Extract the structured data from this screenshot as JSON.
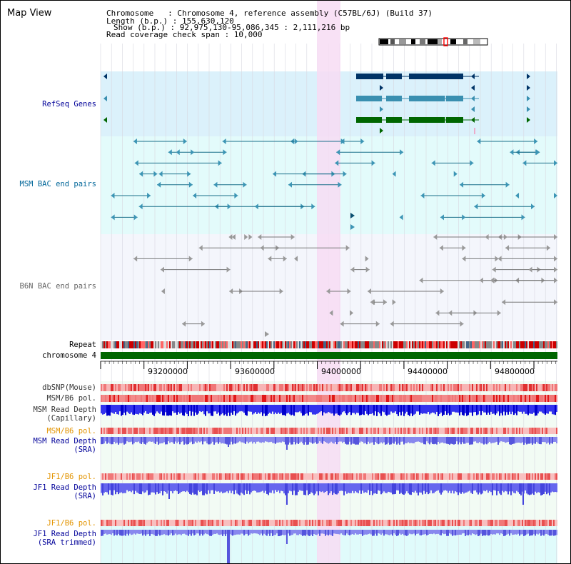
{
  "header": {
    "title": "Map View",
    "chromosome_line": "Chromosome   : Chromosome 4, reference assembly (C57BL/6J) (Build 37)",
    "length_line": "Length (b.p.) : 155,630,120",
    "show_line": "Show (b.p.) : 92,975,130-95,086,345 : 2,111,216 bp",
    "coverage_line": "Read coverage check span : 10,000"
  },
  "tracks": {
    "refseq": "RefSeq Genes",
    "msm_bac": "MSM BAC end pairs",
    "b6n_bac": "B6N BAC end pairs",
    "repeat": "Repeat",
    "chromosome": "chromosome 4",
    "dbsnp": "dbSNP(Mouse)",
    "msm_b6_pol": "MSM/B6 pol.",
    "msm_depth_cap_1": "MSM Read Depth",
    "msm_depth_cap_2": "(Capillary)",
    "msm_b6_pol_2": "MSM/B6 pol.",
    "msm_depth_sra_1": "MSM Read Depth",
    "msm_depth_sra_2": "(SRA)",
    "jf1_b6_pol": "JF1/B6 pol.",
    "jf1_depth_sra_1": "JF1 Read Depth",
    "jf1_depth_sra_2": "(SRA)",
    "jf1_b6_pol_2": "JF1/B6 pol.",
    "jf1_depth_trim_1": "JF1 Read Depth",
    "jf1_depth_trim_2": "(SRA trimmed)"
  },
  "ruler": {
    "ticks": [
      "93200000",
      "93600000",
      "94000000",
      "94400000",
      "94800000"
    ]
  },
  "colors": {
    "refseq_bg": "#dbf1fb",
    "msm_bg": "#e3fbfb",
    "b6n_bg": "#f4f6fc",
    "highlight": "#f7dcf3",
    "refseq_label": "#000099",
    "msm_label": "#006699",
    "b6n_label": "#666666",
    "pol_orange": "#e39400",
    "depth_blue": "#0000cc",
    "chromosome_green": "#006600"
  }
}
